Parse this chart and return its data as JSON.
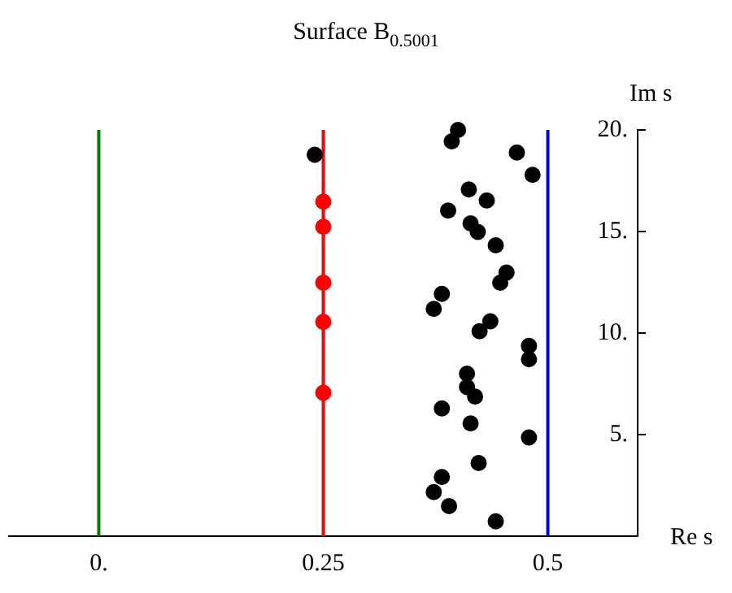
{
  "chart_data": {
    "type": "scatter",
    "title": "Surface B$_{0.5001}$",
    "xlabel": "Re s",
    "ylabel": "Im s",
    "xlim": [
      -0.1,
      0.6
    ],
    "ylim": [
      0,
      20
    ],
    "xticks": [
      {
        "value": 0,
        "label": "0."
      },
      0.25,
      0.5
    ],
    "yticks": [
      {
        "value": 5,
        "label": "5."
      },
      {
        "value": 10,
        "label": "10."
      },
      {
        "value": 15,
        "label": "15."
      },
      {
        "value": 20,
        "label": "20."
      }
    ],
    "marker": "circle",
    "grid": false,
    "legend": false,
    "ref_lines": [
      {
        "axis": "x",
        "value": 0,
        "color": "#008000"
      },
      {
        "axis": "x",
        "value": 0.25,
        "color": "#ff0000"
      },
      {
        "axis": "x",
        "value": 0.5,
        "color": "#0000ff"
      }
    ],
    "series": [
      {
        "color": "#000000",
        "x": [
          0.4,
          0.393,
          0.2405,
          0.4655,
          0.483,
          0.412,
          0.432,
          0.389,
          0.414,
          0.422,
          0.442,
          0.454,
          0.447,
          0.382,
          0.373,
          0.436,
          0.424,
          0.479,
          0.479,
          0.41,
          0.41,
          0.419,
          0.382,
          0.414,
          0.479,
          0.423,
          0.382,
          0.373,
          0.39,
          0.442
        ],
        "values": [
          20,
          19.44,
          18.78,
          18.89,
          17.79,
          17.07,
          16.53,
          16.03,
          15.4,
          14.98,
          14.32,
          12.98,
          12.48,
          11.93,
          11.19,
          10.58,
          10.09,
          9.37,
          8.71,
          8.0,
          7.34,
          6.87,
          6.29,
          5.55,
          4.86,
          3.6,
          2.91,
          2.17,
          1.48,
          0.73
        ]
      },
      {
        "color": "#ff0000",
        "x": [
          0.25,
          0.25,
          0.25,
          0.25,
          0.25
        ],
        "values": [
          16.47,
          15.23,
          12.48,
          10.55,
          7.06
        ]
      }
    ]
  }
}
